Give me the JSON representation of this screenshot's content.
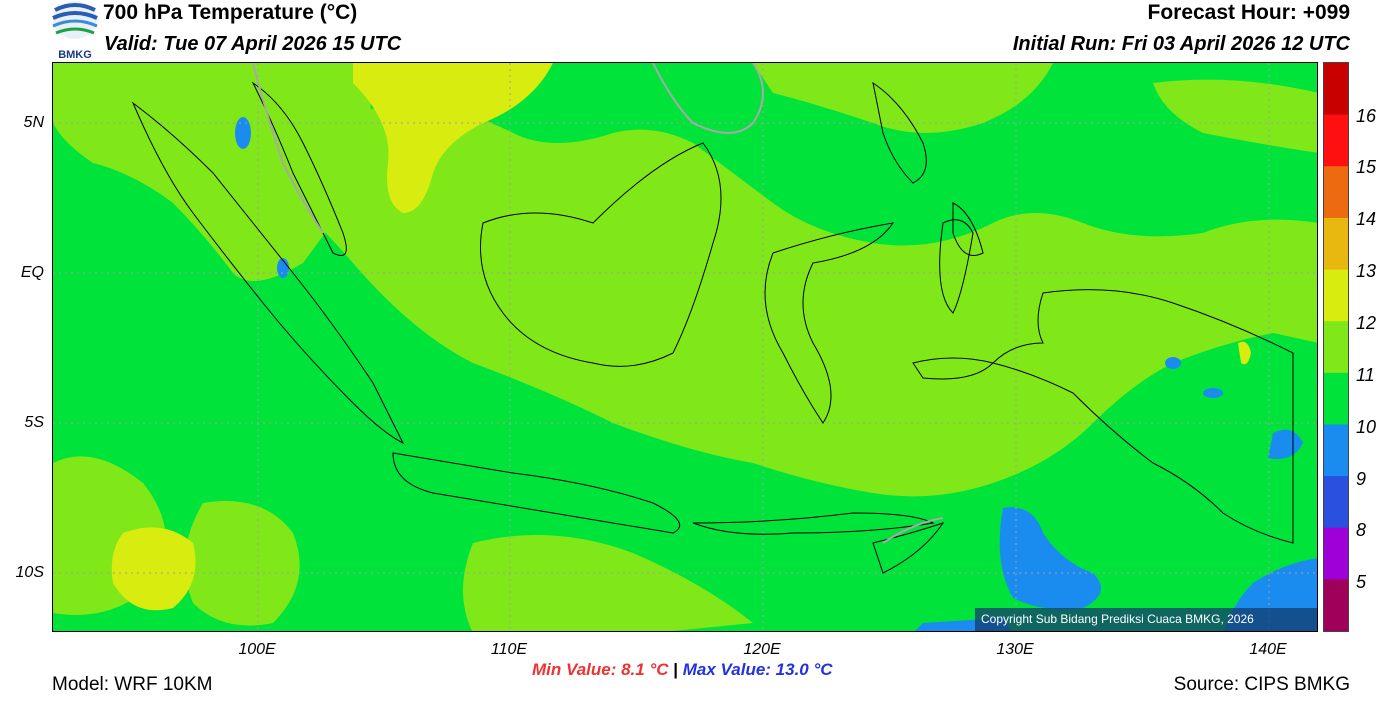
{
  "header": {
    "title": "700 hPa Temperature (°C)",
    "valid": "Valid: Tue 07 April 2026 15 UTC",
    "forecast_hour": "Forecast Hour: +099",
    "initial_run": "Initial Run: Fri 03 April 2026 12 UTC",
    "logo_text": "BMKG"
  },
  "map": {
    "lat_labels": [
      "5N",
      "EQ",
      "5S",
      "10S"
    ],
    "lon_labels": [
      "100E",
      "110E",
      "120E",
      "130E",
      "140E"
    ],
    "copyright": "Copyright Sub Bidang Prediksi Cuaca BMKG, 2026",
    "background_color": "#00e33a"
  },
  "colorbar": {
    "labels": [
      "16",
      "15",
      "14",
      "13",
      "12",
      "11",
      "10",
      "9",
      "8",
      "5"
    ],
    "colors": [
      "#c80000",
      "#ff1010",
      "#ee6a10",
      "#e8b810",
      "#d8ec10",
      "#80e818",
      "#00e33a",
      "#1a8cf0",
      "#2a50e0",
      "#a000d8",
      "#a0005a"
    ]
  },
  "footer": {
    "min_value": "Min Value: 8.1 °C",
    "separator": "|",
    "max_value": "Max Value: 13.0 °C",
    "model": "Model: WRF 10KM",
    "source": "Source: CIPS BMKG"
  }
}
